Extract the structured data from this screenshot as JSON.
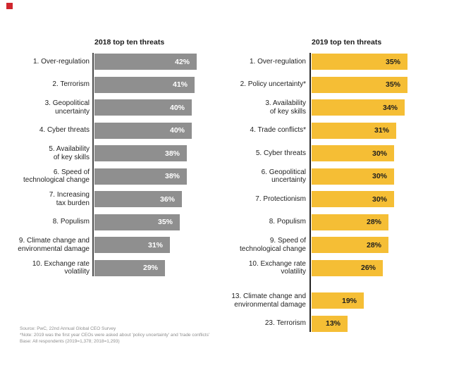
{
  "brand": {
    "mark_color": "#D0262E"
  },
  "chart_data": [
    {
      "type": "bar",
      "orientation": "horizontal",
      "title": "2018 top ten threats",
      "unit": "%",
      "xlim": [
        0,
        45
      ],
      "bar_color": "#8F8F8F",
      "value_label_color": "#FFFFFF",
      "axis_color": "#4A4A4A",
      "categories": [
        "1. Over-regulation",
        "2. Terrorism",
        "3. Geopolitical uncertainty",
        "4. Cyber threats",
        "5. Availability of key skills",
        "6. Speed of technological change",
        "7. Increasing tax burden",
        "8. Populism",
        "9. Climate change and environmental damage",
        "10. Exchange rate volatility"
      ],
      "label_lines": [
        [
          "1. Over-regulation"
        ],
        [
          "2. Terrorism"
        ],
        [
          "3. Geopolitical",
          "uncertainty"
        ],
        [
          "4. Cyber threats"
        ],
        [
          "5. Availability",
          "of key skills"
        ],
        [
          "6. Speed of",
          "technological change"
        ],
        [
          "7. Increasing",
          "tax burden"
        ],
        [
          "8. Populism"
        ],
        [
          "9. Climate change and",
          "environmental damage"
        ],
        [
          "10. Exchange rate",
          "volatility"
        ]
      ],
      "values": [
        42,
        41,
        40,
        40,
        38,
        38,
        36,
        35,
        31,
        29
      ],
      "value_labels": [
        "42%",
        "41%",
        "40%",
        "40%",
        "38%",
        "38%",
        "36%",
        "35%",
        "31%",
        "29%"
      ],
      "gap_before_indices": []
    },
    {
      "type": "bar",
      "orientation": "horizontal",
      "title": "2019 top ten threats",
      "unit": "%",
      "xlim": [
        0,
        40
      ],
      "bar_color": "#F5BE35",
      "value_label_color": "#1E1E1E",
      "axis_color": "#222222",
      "categories": [
        "1. Over-regulation",
        "2. Policy uncertainty*",
        "3. Availability of key skills",
        "4. Trade conflicts*",
        "5. Cyber threats",
        "6. Geopolitical uncertainty",
        "7. Protectionism",
        "8. Populism",
        "9. Speed of technological change",
        "10. Exchange rate volatility",
        "13. Climate change and environmental damage",
        "23. Terrorism"
      ],
      "label_lines": [
        [
          "1. Over-regulation"
        ],
        [
          "2. Policy uncertainty*"
        ],
        [
          "3. Availability",
          "of key skills"
        ],
        [
          "4. Trade conflicts*"
        ],
        [
          "5. Cyber threats"
        ],
        [
          "6. Geopolitical",
          "uncertainty"
        ],
        [
          "7. Protectionism"
        ],
        [
          "8. Populism"
        ],
        [
          "9. Speed of",
          "technological change"
        ],
        [
          "10. Exchange rate",
          "volatility"
        ],
        [
          "13. Climate change and",
          "environmental damage"
        ],
        [
          "23. Terrorism"
        ]
      ],
      "values": [
        35,
        35,
        34,
        31,
        30,
        30,
        30,
        28,
        28,
        26,
        19,
        13
      ],
      "value_labels": [
        "35%",
        "35%",
        "34%",
        "31%",
        "30%",
        "30%",
        "30%",
        "28%",
        "28%",
        "26%",
        "19%",
        "13%"
      ],
      "gap_before_indices": [
        10
      ]
    }
  ],
  "footnotes": [
    "Source: PwC, 22nd Annual Global CEO Survey",
    "*Note: 2019 was the first year CEOs were asked about 'policy uncertainty' and 'trade conflicts'",
    "Base: All respondents (2019=1,378; 2018=1,293)"
  ]
}
